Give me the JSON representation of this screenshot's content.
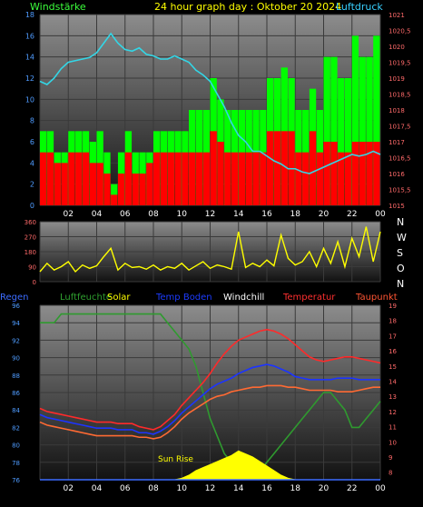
{
  "colors": {
    "background": "#000000",
    "plot_top": "#8a8a8a",
    "plot_bottom": "#141414",
    "grid": "#3a3a3a",
    "axis_text": "#ffffff",
    "tick_text_left": "#4f9cff",
    "tick_text_right": "#ff6a6a",
    "windspeed_label": "#3cff3c",
    "title": "#ffff00",
    "pressure_label": "#38d0ff"
  },
  "header": {
    "windspeed_label": "Windstärke",
    "title": "24 hour graph day : Oktober 20 2024",
    "pressure_label": "Luftdruck"
  },
  "direction_letters": [
    "N",
    "W",
    "S",
    "O",
    "N"
  ],
  "legend": [
    {
      "label": "Regen",
      "color": "#3c6cff"
    },
    {
      "label": "Luftfeuchte",
      "color": "#2fa02f"
    },
    {
      "label": "Solar",
      "color": "#ffff00"
    },
    {
      "label": "Temp Boden",
      "color": "#1c3cff"
    },
    {
      "label": "Windchill",
      "color": "#ffffff"
    },
    {
      "label": "Temperatur",
      "color": "#ff3030"
    },
    {
      "label": "Taupunkt",
      "color": "#ff5533"
    }
  ],
  "sunrise_label": "Sun Rise",
  "x_ticks": [
    "02",
    "04",
    "06",
    "08",
    "10",
    "12",
    "14",
    "16",
    "18",
    "20",
    "22",
    "00"
  ],
  "chart_data": [
    {
      "type": "bar",
      "name": "wind",
      "x_range_hours": [
        0,
        24
      ],
      "y_left_ticks": [
        "0",
        "2",
        "4",
        "6",
        "8",
        "10",
        "12",
        "14",
        "16",
        "18"
      ],
      "y_left_range": [
        0,
        18
      ],
      "y_right_ticks": [
        "1015",
        "1015,5",
        "1016",
        "1016,5",
        "1017",
        "1017,5",
        "1018",
        "1018,5",
        "1019",
        "1019,5",
        "1020",
        "1020,5",
        "1021"
      ],
      "y_right_range": [
        1015,
        1021
      ],
      "series": [
        {
          "name": "Windstärke",
          "color": "#00ff00",
          "x": [
            0,
            0.5,
            1,
            1.5,
            2,
            2.5,
            3,
            3.5,
            4,
            4.5,
            5,
            5.5,
            6,
            6.5,
            7,
            7.5,
            8,
            8.5,
            9,
            9.5,
            10,
            10.5,
            11,
            11.5,
            12,
            12.5,
            13,
            13.5,
            14,
            14.5,
            15,
            15.5,
            16,
            16.5,
            17,
            17.5,
            18,
            18.5,
            19,
            19.5,
            20,
            20.5,
            21,
            21.5,
            22,
            22.5,
            23,
            23.5,
            24
          ],
          "values": [
            7,
            7,
            5,
            5,
            7,
            7,
            7,
            6,
            7,
            5,
            2,
            5,
            7,
            5,
            5,
            5,
            7,
            7,
            7,
            7,
            7,
            9,
            9,
            9,
            12,
            10,
            9,
            9,
            9,
            9,
            9,
            9,
            12,
            12,
            13,
            12,
            9,
            9,
            11,
            9,
            14,
            14,
            12,
            12,
            16,
            14,
            14,
            16,
            7
          ]
        },
        {
          "name": "Böen",
          "color": "#ff0000",
          "x": [
            0,
            0.5,
            1,
            1.5,
            2,
            2.5,
            3,
            3.5,
            4,
            4.5,
            5,
            5.5,
            6,
            6.5,
            7,
            7.5,
            8,
            8.5,
            9,
            9.5,
            10,
            10.5,
            11,
            11.5,
            12,
            12.5,
            13,
            13.5,
            14,
            14.5,
            15,
            15.5,
            16,
            16.5,
            17,
            17.5,
            18,
            18.5,
            19,
            19.5,
            20,
            20.5,
            21,
            21.5,
            22,
            22.5,
            23,
            23.5,
            24
          ],
          "values": [
            5,
            5,
            4,
            4,
            5,
            5,
            5,
            4,
            4,
            3,
            1,
            3,
            5,
            3,
            3,
            4,
            5,
            5,
            5,
            5,
            5,
            5,
            5,
            5,
            7,
            6,
            5,
            5,
            5,
            5,
            5,
            5,
            7,
            7,
            7,
            7,
            5,
            5,
            7,
            5,
            6,
            6,
            5,
            5,
            6,
            6,
            6,
            6,
            5
          ]
        },
        {
          "name": "Luftdruck",
          "color": "#33d6e6",
          "x": [
            0,
            0.5,
            1,
            1.5,
            2,
            2.5,
            3,
            3.5,
            4,
            4.5,
            5,
            5.5,
            6,
            6.5,
            7,
            7.5,
            8,
            8.5,
            9,
            9.5,
            10,
            10.5,
            11,
            11.5,
            12,
            12.5,
            13,
            13.5,
            14,
            14.5,
            15,
            15.5,
            16,
            16.5,
            17,
            17.5,
            18,
            18.5,
            19,
            19.5,
            20,
            20.5,
            21,
            21.5,
            22,
            22.5,
            23,
            23.5,
            24
          ],
          "values": [
            1018.9,
            1018.8,
            1019.0,
            1019.3,
            1019.5,
            1019.55,
            1019.6,
            1019.65,
            1019.8,
            1020.1,
            1020.4,
            1020.1,
            1019.9,
            1019.85,
            1019.95,
            1019.75,
            1019.7,
            1019.6,
            1019.6,
            1019.7,
            1019.6,
            1019.5,
            1019.25,
            1019.1,
            1018.9,
            1018.5,
            1018.1,
            1017.6,
            1017.2,
            1017.0,
            1016.7,
            1016.7,
            1016.55,
            1016.4,
            1016.3,
            1016.15,
            1016.15,
            1016.05,
            1016.0,
            1016.1,
            1016.2,
            1016.3,
            1016.4,
            1016.5,
            1016.6,
            1016.55,
            1016.6,
            1016.7,
            1016.6
          ]
        }
      ]
    },
    {
      "type": "line",
      "name": "wind_direction",
      "x_range_hours": [
        0,
        24
      ],
      "y_ticks": [
        "0",
        "90",
        "180",
        "270",
        "360"
      ],
      "y_range": [
        0,
        360
      ],
      "series": [
        {
          "name": "Windrichtung",
          "color": "#ffff00",
          "x": [
            0,
            0.5,
            1,
            1.5,
            2,
            2.5,
            3,
            3.5,
            4,
            4.5,
            5,
            5.5,
            6,
            6.5,
            7,
            7.5,
            8,
            8.5,
            9,
            9.5,
            10,
            10.5,
            11,
            11.5,
            12,
            12.5,
            13,
            13.5,
            14,
            14.5,
            15,
            15.5,
            16,
            16.5,
            17,
            17.5,
            18,
            18.5,
            19,
            19.5,
            20,
            20.5,
            21,
            21.5,
            22,
            22.5,
            23,
            23.5,
            24
          ],
          "values": [
            60,
            110,
            70,
            90,
            120,
            60,
            100,
            80,
            95,
            150,
            200,
            70,
            110,
            85,
            90,
            75,
            100,
            70,
            90,
            80,
            110,
            70,
            95,
            120,
            80,
            100,
            90,
            75,
            300,
            85,
            110,
            90,
            130,
            95,
            280,
            140,
            100,
            120,
            180,
            90,
            200,
            110,
            240,
            90,
            260,
            150,
            330,
            120,
            300
          ]
        }
      ]
    },
    {
      "type": "line",
      "name": "temperature",
      "x_range_hours": [
        0,
        24
      ],
      "y_left_ticks": [
        "76",
        "78",
        "80",
        "82",
        "84",
        "86",
        "88",
        "90",
        "92",
        "94",
        "96"
      ],
      "y_left_range": [
        76,
        96
      ],
      "y_right_ticks": [
        "8",
        "9",
        "10",
        "11",
        "12",
        "13",
        "14",
        "15",
        "16",
        "17",
        "18",
        "19"
      ],
      "y_right_range": [
        7.5,
        19
      ],
      "series": [
        {
          "name": "Luftfeuchte",
          "color": "#2f9a2f",
          "axis": "left",
          "x": [
            0,
            0.5,
            1,
            1.5,
            2,
            2.5,
            3,
            3.5,
            4,
            4.5,
            5,
            5.5,
            6,
            6.5,
            7,
            7.5,
            8,
            8.5,
            9,
            9.5,
            10,
            10.5,
            11,
            11.5,
            12,
            12.5,
            13,
            13.5,
            14,
            14.5,
            15,
            15.5,
            16,
            16.5,
            17,
            17.5,
            18,
            18.5,
            19,
            19.5,
            20,
            20.5,
            21,
            21.5,
            22,
            22.5,
            23,
            23.5,
            24
          ],
          "values": [
            94,
            94,
            94,
            95,
            95,
            95,
            95,
            95,
            95,
            95,
            95,
            95,
            95,
            95,
            95,
            95,
            95,
            95,
            94,
            93,
            92,
            91,
            89,
            86,
            83,
            81,
            79,
            78,
            77,
            77,
            77,
            77,
            78,
            79,
            80,
            81,
            82,
            83,
            84,
            85,
            86,
            86,
            85,
            84,
            82,
            82,
            83,
            84,
            85
          ]
        },
        {
          "name": "Temperatur",
          "color": "#ff2a2a",
          "axis": "right",
          "x": [
            0,
            0.5,
            1,
            1.5,
            2,
            2.5,
            3,
            3.5,
            4,
            4.5,
            5,
            5.5,
            6,
            6.5,
            7,
            7.5,
            8,
            8.5,
            9,
            9.5,
            10,
            10.5,
            11,
            11.5,
            12,
            12.5,
            13,
            13.5,
            14,
            14.5,
            15,
            15.5,
            16,
            16.5,
            17,
            17.5,
            18,
            18.5,
            19,
            19.5,
            20,
            20.5,
            21,
            21.5,
            22,
            22.5,
            23,
            23.5,
            24
          ],
          "values": [
            12.2,
            12.0,
            11.9,
            11.8,
            11.7,
            11.6,
            11.5,
            11.4,
            11.3,
            11.3,
            11.3,
            11.2,
            11.2,
            11.2,
            11.0,
            10.9,
            10.8,
            11.0,
            11.4,
            11.8,
            12.4,
            12.9,
            13.4,
            13.9,
            14.5,
            15.2,
            15.8,
            16.3,
            16.7,
            16.9,
            17.1,
            17.3,
            17.4,
            17.3,
            17.1,
            16.8,
            16.4,
            16.0,
            15.6,
            15.4,
            15.3,
            15.4,
            15.5,
            15.6,
            15.6,
            15.5,
            15.4,
            15.3,
            15.2
          ]
        },
        {
          "name": "Temp Boden",
          "color": "#1c34ff",
          "axis": "right",
          "x": [
            0,
            0.5,
            1,
            1.5,
            2,
            2.5,
            3,
            3.5,
            4,
            4.5,
            5,
            5.5,
            6,
            6.5,
            7,
            7.5,
            8,
            8.5,
            9,
            9.5,
            10,
            10.5,
            11,
            11.5,
            12,
            12.5,
            13,
            13.5,
            14,
            14.5,
            15,
            15.5,
            16,
            16.5,
            17,
            17.5,
            18,
            18.5,
            19,
            19.5,
            20,
            20.5,
            21,
            21.5,
            22,
            22.5,
            23,
            23.5,
            24
          ],
          "values": [
            11.8,
            11.6,
            11.5,
            11.4,
            11.3,
            11.2,
            11.1,
            11.0,
            10.9,
            10.9,
            10.9,
            10.8,
            10.8,
            10.8,
            10.6,
            10.6,
            10.5,
            10.7,
            11.0,
            11.4,
            11.9,
            12.3,
            12.7,
            13.1,
            13.5,
            13.8,
            14.0,
            14.2,
            14.5,
            14.7,
            14.9,
            15.0,
            15.1,
            15.0,
            14.8,
            14.6,
            14.3,
            14.2,
            14.1,
            14.1,
            14.1,
            14.1,
            14.2,
            14.2,
            14.2,
            14.1,
            14.1,
            14.1,
            14.1
          ]
        },
        {
          "name": "Taupunkt",
          "color": "#ff6a33",
          "axis": "right",
          "x": [
            0,
            0.5,
            1,
            1.5,
            2,
            2.5,
            3,
            3.5,
            4,
            4.5,
            5,
            5.5,
            6,
            6.5,
            7,
            7.5,
            8,
            8.5,
            9,
            9.5,
            10,
            10.5,
            11,
            11.5,
            12,
            12.5,
            13,
            13.5,
            14,
            14.5,
            15,
            15.5,
            16,
            16.5,
            17,
            17.5,
            18,
            18.5,
            19,
            19.5,
            20,
            20.5,
            21,
            21.5,
            22,
            22.5,
            23,
            23.5,
            24
          ],
          "values": [
            11.3,
            11.1,
            11.0,
            10.9,
            10.8,
            10.7,
            10.6,
            10.5,
            10.4,
            10.4,
            10.4,
            10.4,
            10.4,
            10.4,
            10.3,
            10.3,
            10.2,
            10.3,
            10.6,
            11.0,
            11.5,
            11.9,
            12.2,
            12.5,
            12.8,
            13.0,
            13.1,
            13.3,
            13.4,
            13.5,
            13.6,
            13.6,
            13.7,
            13.7,
            13.7,
            13.6,
            13.6,
            13.5,
            13.4,
            13.4,
            13.4,
            13.4,
            13.3,
            13.3,
            13.3,
            13.4,
            13.5,
            13.6,
            13.6
          ]
        },
        {
          "name": "Solar",
          "color": "#ffff00",
          "axis": "right",
          "x": [
            0,
            0.5,
            1,
            1.5,
            2,
            2.5,
            3,
            3.5,
            4,
            4.5,
            5,
            5.5,
            6,
            6.5,
            7,
            7.5,
            8,
            8.5,
            9,
            9.5,
            10,
            10.5,
            11,
            11.5,
            12,
            12.5,
            13,
            13.5,
            14,
            14.5,
            15,
            15.5,
            16,
            16.5,
            17,
            17.5,
            18,
            18.5,
            19,
            19.5,
            20,
            20.5,
            21,
            21.5,
            22,
            22.5,
            23,
            23.5,
            24
          ],
          "values": [
            7.5,
            7.5,
            7.5,
            7.5,
            7.5,
            7.5,
            7.5,
            7.5,
            7.5,
            7.5,
            7.5,
            7.5,
            7.5,
            7.5,
            7.5,
            7.5,
            7.5,
            7.5,
            7.5,
            7.5,
            7.6,
            7.8,
            8.1,
            8.3,
            8.5,
            8.7,
            8.9,
            9.1,
            9.4,
            9.2,
            9.0,
            8.7,
            8.4,
            8.1,
            7.8,
            7.6,
            7.5,
            7.5,
            7.5,
            7.5,
            7.5,
            7.5,
            7.5,
            7.5,
            7.5,
            7.5,
            7.5,
            7.5,
            7.5
          ]
        },
        {
          "name": "Regen",
          "color": "#3c6cff",
          "axis": "left",
          "x": [
            0,
            24
          ],
          "values": [
            76,
            76
          ]
        }
      ]
    }
  ]
}
